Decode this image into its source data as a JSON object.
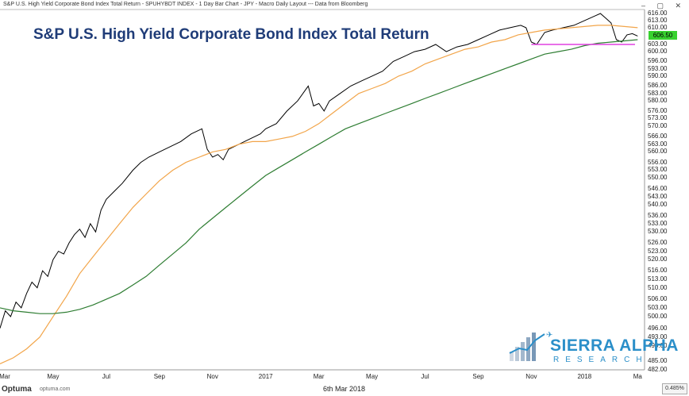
{
  "window": {
    "header_text": "S&P U.S. High Yield Corporate Bond Index Total Return - SPUHYBDT INDEX - 1 Day Bar Chart - JPY - Macro Daily Layout --- Data from Bloomberg",
    "buttons": "– ▢ ✕"
  },
  "footer": {
    "brand": "Optuma",
    "url": "optuma.com",
    "date": "6th Mar 2018",
    "scale": "0.485%"
  },
  "logo": {
    "name": "SIERRA ALPHA",
    "sub": "RESEARCH"
  },
  "chart_data": {
    "type": "line",
    "title": "S&P U.S. High Yield Corporate Bond Index Total Return",
    "last_value_label": "606.50",
    "ylim": [
      482,
      617
    ],
    "y_scale": "log",
    "y_ticks": [
      "616.00",
      "613.00",
      "610.00",
      "606.50",
      "603.00",
      "600.00",
      "596.00",
      "593.00",
      "590.00",
      "586.00",
      "583.00",
      "580.00",
      "576.00",
      "573.00",
      "570.00",
      "566.00",
      "563.00",
      "560.00",
      "556.00",
      "553.00",
      "550.00",
      "546.00",
      "543.00",
      "540.00",
      "536.00",
      "533.00",
      "530.00",
      "526.00",
      "523.00",
      "520.00",
      "516.00",
      "513.00",
      "510.00",
      "506.00",
      "503.00",
      "500.00",
      "496.00",
      "493.00",
      "490.00",
      "485.00",
      "482.00"
    ],
    "x_ticks": [
      {
        "label": "Mar",
        "t": 0
      },
      {
        "label": "May",
        "t": 2.0
      },
      {
        "label": "Jul",
        "t": 4.0
      },
      {
        "label": "Sep",
        "t": 6.0
      },
      {
        "label": "Nov",
        "t": 8.0
      },
      {
        "label": "2017",
        "t": 10.0
      },
      {
        "label": "Mar",
        "t": 12.0
      },
      {
        "label": "May",
        "t": 14.0
      },
      {
        "label": "Jul",
        "t": 16.0
      },
      {
        "label": "Sep",
        "t": 18.0
      },
      {
        "label": "Nov",
        "t": 20.0
      },
      {
        "label": "2018",
        "t": 22.0
      },
      {
        "label": "Ma",
        "t": 24.0
      }
    ],
    "xlim": [
      0,
      24.2
    ],
    "support_line": {
      "value": 603.0,
      "from_t": 20.0,
      "to_t": 23.9,
      "color": "#e040e0"
    },
    "series": [
      {
        "color": "#000000",
        "points": [
          [
            0,
            496
          ],
          [
            0.2,
            502
          ],
          [
            0.4,
            500
          ],
          [
            0.6,
            505
          ],
          [
            0.8,
            503
          ],
          [
            1.0,
            508
          ],
          [
            1.2,
            512
          ],
          [
            1.4,
            510
          ],
          [
            1.6,
            516
          ],
          [
            1.8,
            514
          ],
          [
            2.0,
            520
          ],
          [
            2.2,
            523
          ],
          [
            2.4,
            522
          ],
          [
            2.6,
            526
          ],
          [
            2.8,
            529
          ],
          [
            3.0,
            531
          ],
          [
            3.2,
            528
          ],
          [
            3.4,
            533
          ],
          [
            3.6,
            530
          ],
          [
            3.8,
            538
          ],
          [
            4.0,
            542
          ],
          [
            4.3,
            545
          ],
          [
            4.6,
            548
          ],
          [
            5.0,
            553
          ],
          [
            5.3,
            556
          ],
          [
            5.6,
            558
          ],
          [
            6.0,
            560
          ],
          [
            6.4,
            562
          ],
          [
            6.8,
            564
          ],
          [
            7.2,
            567
          ],
          [
            7.6,
            569
          ],
          [
            7.8,
            561
          ],
          [
            8.0,
            558
          ],
          [
            8.2,
            559
          ],
          [
            8.4,
            557
          ],
          [
            8.6,
            561
          ],
          [
            9.0,
            563
          ],
          [
            9.4,
            565
          ],
          [
            9.8,
            567
          ],
          [
            10.0,
            569
          ],
          [
            10.4,
            571
          ],
          [
            10.8,
            576
          ],
          [
            11.2,
            580
          ],
          [
            11.6,
            586
          ],
          [
            11.8,
            578
          ],
          [
            12.0,
            579
          ],
          [
            12.2,
            576
          ],
          [
            12.4,
            580
          ],
          [
            12.8,
            583
          ],
          [
            13.2,
            586
          ],
          [
            13.6,
            588
          ],
          [
            14.0,
            590
          ],
          [
            14.4,
            592
          ],
          [
            14.8,
            596
          ],
          [
            15.2,
            598
          ],
          [
            15.6,
            600
          ],
          [
            16.0,
            601
          ],
          [
            16.4,
            603
          ],
          [
            16.8,
            600
          ],
          [
            17.2,
            602
          ],
          [
            17.6,
            603
          ],
          [
            18.0,
            605
          ],
          [
            18.4,
            607
          ],
          [
            18.8,
            609
          ],
          [
            19.2,
            610
          ],
          [
            19.6,
            611
          ],
          [
            19.8,
            610
          ],
          [
            20.0,
            604
          ],
          [
            20.2,
            603
          ],
          [
            20.5,
            608
          ],
          [
            20.8,
            609
          ],
          [
            21.2,
            610
          ],
          [
            21.6,
            611
          ],
          [
            22.0,
            613
          ],
          [
            22.4,
            615
          ],
          [
            22.6,
            616
          ],
          [
            22.8,
            614
          ],
          [
            23.0,
            612
          ],
          [
            23.2,
            605
          ],
          [
            23.4,
            604
          ],
          [
            23.6,
            607
          ],
          [
            23.8,
            607.5
          ],
          [
            24.0,
            606.5
          ]
        ]
      },
      {
        "color": "#f2a54a",
        "points": [
          [
            0,
            484
          ],
          [
            0.5,
            486
          ],
          [
            1.0,
            489
          ],
          [
            1.5,
            493
          ],
          [
            2.0,
            500
          ],
          [
            2.5,
            507
          ],
          [
            3.0,
            515
          ],
          [
            3.5,
            521
          ],
          [
            4.0,
            527
          ],
          [
            4.5,
            533
          ],
          [
            5.0,
            539
          ],
          [
            5.5,
            544
          ],
          [
            6.0,
            549
          ],
          [
            6.5,
            553
          ],
          [
            7.0,
            556
          ],
          [
            7.5,
            558
          ],
          [
            8.0,
            560
          ],
          [
            8.5,
            561
          ],
          [
            9.0,
            563
          ],
          [
            9.5,
            564
          ],
          [
            10.0,
            564
          ],
          [
            10.5,
            565
          ],
          [
            11.0,
            566
          ],
          [
            11.5,
            568
          ],
          [
            12.0,
            571
          ],
          [
            12.5,
            575
          ],
          [
            13.0,
            579
          ],
          [
            13.5,
            583
          ],
          [
            14.0,
            585
          ],
          [
            14.5,
            587
          ],
          [
            15.0,
            590
          ],
          [
            15.5,
            592
          ],
          [
            16.0,
            595
          ],
          [
            16.5,
            597
          ],
          [
            17.0,
            599
          ],
          [
            17.5,
            601
          ],
          [
            18.0,
            602
          ],
          [
            18.5,
            604
          ],
          [
            19.0,
            605
          ],
          [
            19.5,
            607
          ],
          [
            20.0,
            608
          ],
          [
            20.5,
            609
          ],
          [
            21.0,
            609.5
          ],
          [
            21.5,
            610
          ],
          [
            22.0,
            610.5
          ],
          [
            22.5,
            611
          ],
          [
            23.0,
            611
          ],
          [
            23.5,
            610.5
          ],
          [
            24.0,
            610
          ]
        ]
      },
      {
        "color": "#2e7d32",
        "points": [
          [
            0,
            503
          ],
          [
            0.5,
            502
          ],
          [
            1.0,
            501.5
          ],
          [
            1.5,
            501
          ],
          [
            2.0,
            501
          ],
          [
            2.5,
            501.5
          ],
          [
            3.0,
            502.5
          ],
          [
            3.5,
            504
          ],
          [
            4.0,
            506
          ],
          [
            4.5,
            508
          ],
          [
            5.0,
            511
          ],
          [
            5.5,
            514
          ],
          [
            6.0,
            518
          ],
          [
            6.5,
            522
          ],
          [
            7.0,
            526
          ],
          [
            7.5,
            531
          ],
          [
            8.0,
            535
          ],
          [
            8.5,
            539
          ],
          [
            9.0,
            543
          ],
          [
            9.5,
            547
          ],
          [
            10.0,
            551
          ],
          [
            10.5,
            554
          ],
          [
            11.0,
            557
          ],
          [
            11.5,
            560
          ],
          [
            12.0,
            563
          ],
          [
            12.5,
            566
          ],
          [
            13.0,
            569
          ],
          [
            13.5,
            571
          ],
          [
            14.0,
            573
          ],
          [
            14.5,
            575
          ],
          [
            15.0,
            577
          ],
          [
            15.5,
            579
          ],
          [
            16.0,
            581
          ],
          [
            16.5,
            583
          ],
          [
            17.0,
            585
          ],
          [
            17.5,
            587
          ],
          [
            18.0,
            589
          ],
          [
            18.5,
            591
          ],
          [
            19.0,
            593
          ],
          [
            19.5,
            595
          ],
          [
            20.0,
            597
          ],
          [
            20.5,
            599
          ],
          [
            21.0,
            600
          ],
          [
            21.5,
            601
          ],
          [
            22.0,
            602.5
          ],
          [
            22.5,
            603.5
          ],
          [
            23.0,
            604
          ],
          [
            23.5,
            604.5
          ],
          [
            24.0,
            605
          ]
        ]
      }
    ]
  }
}
